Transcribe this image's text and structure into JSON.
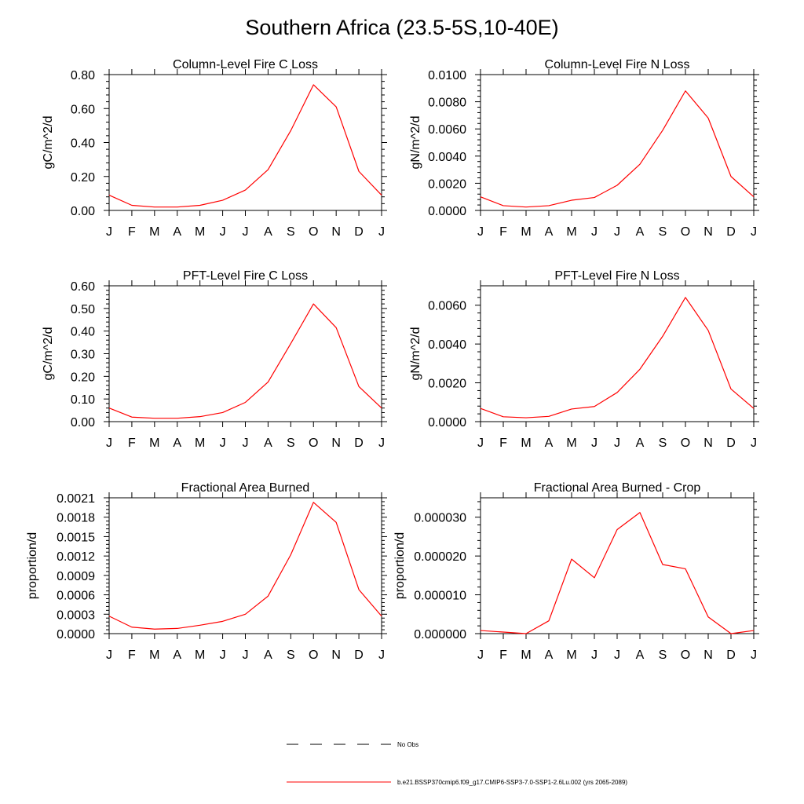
{
  "title": "Southern Africa (23.5-5S,10-40E)",
  "months": [
    "J",
    "F",
    "M",
    "A",
    "M",
    "J",
    "J",
    "A",
    "S",
    "O",
    "N",
    "D",
    "J"
  ],
  "legend": {
    "entries": [
      {
        "label": "No Obs",
        "color": "#000000",
        "style": "dashed"
      },
      {
        "label": "b.e21.BSSP370cmip6.f09_g17.CMIP6-SSP3-7.0-SSP1-2.6Lu.002 (yrs 2065-2089)",
        "color": "#ff0000",
        "style": "solid"
      }
    ]
  },
  "chart_data": [
    {
      "type": "line",
      "title": "Column-Level Fire C Loss",
      "ylabel": "gC/m^2/d",
      "xlabel": "",
      "categories": [
        "J",
        "F",
        "M",
        "A",
        "M",
        "J",
        "J",
        "A",
        "S",
        "O",
        "N",
        "D",
        "J"
      ],
      "ylim": [
        0,
        0.8
      ],
      "yticks": [
        0,
        0.2,
        0.4,
        0.6,
        0.8
      ],
      "yticklabels": [
        "0.00",
        "0.20",
        "0.40",
        "0.60",
        "0.80"
      ],
      "series": [
        {
          "color": "#ff0000",
          "values": [
            0.09,
            0.03,
            0.02,
            0.02,
            0.03,
            0.06,
            0.12,
            0.24,
            0.47,
            0.74,
            0.61,
            0.23,
            0.09
          ]
        }
      ]
    },
    {
      "type": "line",
      "title": "Column-Level Fire N Loss",
      "ylabel": "gN/m^2/d",
      "xlabel": "",
      "categories": [
        "J",
        "F",
        "M",
        "A",
        "M",
        "J",
        "J",
        "A",
        "S",
        "O",
        "N",
        "D",
        "J"
      ],
      "ylim": [
        0,
        0.01
      ],
      "yticks": [
        0,
        0.002,
        0.004,
        0.006,
        0.008,
        0.01
      ],
      "yticklabels": [
        "0.0000",
        "0.0020",
        "0.0040",
        "0.0060",
        "0.0080",
        "0.0100"
      ],
      "series": [
        {
          "color": "#ff0000",
          "values": [
            0.001,
            0.00035,
            0.00025,
            0.00035,
            0.00075,
            0.00095,
            0.00185,
            0.0034,
            0.0059,
            0.0088,
            0.0068,
            0.0025,
            0.001
          ]
        }
      ]
    },
    {
      "type": "line",
      "title": "PFT-Level Fire C Loss",
      "ylabel": "gC/m^2/d",
      "xlabel": "",
      "categories": [
        "J",
        "F",
        "M",
        "A",
        "M",
        "J",
        "J",
        "A",
        "S",
        "O",
        "N",
        "D",
        "J"
      ],
      "ylim": [
        0,
        0.6
      ],
      "yticks": [
        0,
        0.1,
        0.2,
        0.3,
        0.4,
        0.5,
        0.6
      ],
      "yticklabels": [
        "0.00",
        "0.10",
        "0.20",
        "0.30",
        "0.40",
        "0.50",
        "0.60"
      ],
      "series": [
        {
          "color": "#ff0000",
          "values": [
            0.06,
            0.02,
            0.015,
            0.015,
            0.022,
            0.04,
            0.085,
            0.175,
            0.345,
            0.52,
            0.415,
            0.155,
            0.06
          ]
        }
      ]
    },
    {
      "type": "line",
      "title": "PFT-Level Fire N Loss",
      "ylabel": "gN/m^2/d",
      "xlabel": "",
      "categories": [
        "J",
        "F",
        "M",
        "A",
        "M",
        "J",
        "J",
        "A",
        "S",
        "O",
        "N",
        "D",
        "J"
      ],
      "ylim": [
        0,
        0.007
      ],
      "yticks": [
        0,
        0.002,
        0.004,
        0.006
      ],
      "yticklabels": [
        "0.0000",
        "0.0020",
        "0.0040",
        "0.0060"
      ],
      "series": [
        {
          "color": "#ff0000",
          "values": [
            0.00068,
            0.00025,
            0.0002,
            0.00027,
            0.00065,
            0.00078,
            0.0015,
            0.0027,
            0.0044,
            0.0064,
            0.0047,
            0.00168,
            0.00068
          ]
        }
      ]
    },
    {
      "type": "line",
      "title": "Fractional Area Burned",
      "ylabel": "proportion/d",
      "xlabel": "",
      "categories": [
        "J",
        "F",
        "M",
        "A",
        "M",
        "J",
        "J",
        "A",
        "S",
        "O",
        "N",
        "D",
        "J"
      ],
      "ylim": [
        0,
        0.0021
      ],
      "yticks": [
        0,
        0.0003,
        0.0006,
        0.0009,
        0.0012,
        0.0015,
        0.0018,
        0.0021
      ],
      "yticklabels": [
        "0.0000",
        "0.0003",
        "0.0006",
        "0.0009",
        "0.0012",
        "0.0015",
        "0.0018",
        "0.0021"
      ],
      "series": [
        {
          "color": "#ff0000",
          "values": [
            0.00027,
            0.0001,
            7e-05,
            8e-05,
            0.00013,
            0.00019,
            0.0003,
            0.00058,
            0.00122,
            0.00203,
            0.00172,
            0.00068,
            0.00027
          ]
        }
      ]
    },
    {
      "type": "line",
      "title": "Fractional Area Burned - Crop",
      "ylabel": "proportion/d",
      "xlabel": "",
      "categories": [
        "J",
        "F",
        "M",
        "A",
        "M",
        "J",
        "J",
        "A",
        "S",
        "O",
        "N",
        "D",
        "J"
      ],
      "ylim": [
        0,
        3.5e-05
      ],
      "yticks": [
        0,
        1e-05,
        2e-05,
        3e-05
      ],
      "yticklabels": [
        "0.000000",
        "0.000010",
        "0.000020",
        "0.000030"
      ],
      "series": [
        {
          "color": "#ff0000",
          "values": [
            8e-07,
            4e-07,
            0.0,
            3.3e-06,
            1.92e-05,
            1.44e-05,
            2.68e-05,
            3.12e-05,
            1.78e-05,
            1.67e-05,
            4.3e-06,
            0.0,
            8e-07
          ]
        }
      ]
    }
  ]
}
